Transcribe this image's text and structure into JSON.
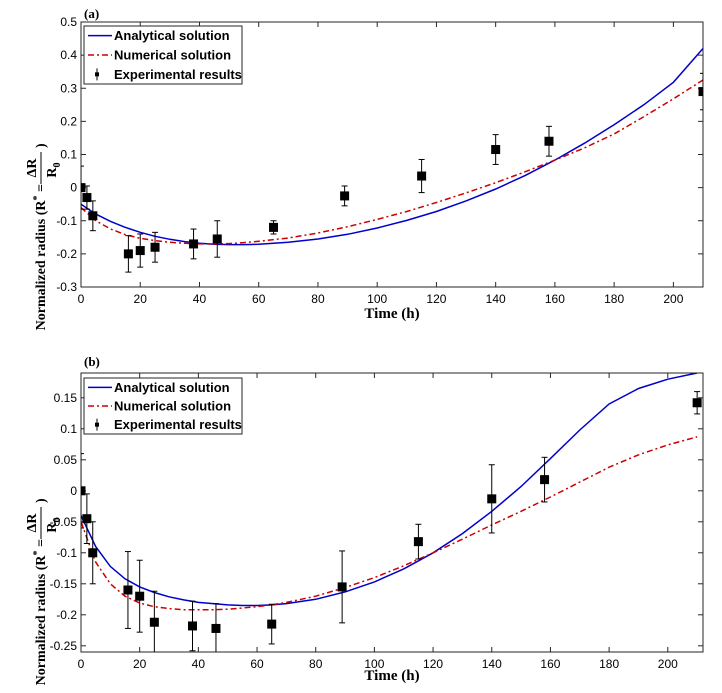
{
  "chart_data": [
    {
      "type": "line",
      "panel_label": "(a)",
      "xlabel": "Time (h)",
      "ylabel": "Normalized radius (R* = ΔR/R0)",
      "ylabel_main": "Normalized radius (R",
      "ylabel_star": "*",
      "ylabel_eq": " = ",
      "ylabel_close": ")",
      "ylabel_num": "ΔR",
      "ylabel_den": "R",
      "ylabel_den_sub": "0",
      "xlim": [
        0,
        210
      ],
      "ylim": [
        -0.3,
        0.5
      ],
      "xticks": [
        0,
        20,
        40,
        60,
        80,
        100,
        120,
        140,
        160,
        180,
        200
      ],
      "yticks": [
        -0.3,
        -0.2,
        -0.1,
        0,
        0.1,
        0.2,
        0.3,
        0.4,
        0.5
      ],
      "ytick_labels": [
        "-0.3",
        "-0.2",
        "-0.1",
        "0",
        "0.1",
        "0.2",
        "0.3",
        "0.4",
        "0.5"
      ],
      "legend": [
        "Analytical solution",
        "Numerical solution",
        "Experimental results"
      ],
      "legend_position": "top-left",
      "series": [
        {
          "name": "Analytical solution",
          "color": "#0000cc",
          "style": "solid",
          "x": [
            0,
            5,
            10,
            15,
            20,
            25,
            30,
            35,
            40,
            45,
            50,
            55,
            60,
            70,
            80,
            90,
            100,
            110,
            120,
            130,
            140,
            150,
            160,
            170,
            180,
            190,
            200,
            210
          ],
          "y": [
            -0.05,
            -0.08,
            -0.102,
            -0.12,
            -0.135,
            -0.147,
            -0.156,
            -0.163,
            -0.168,
            -0.171,
            -0.172,
            -0.172,
            -0.171,
            -0.165,
            -0.155,
            -0.141,
            -0.122,
            -0.099,
            -0.072,
            -0.04,
            -0.004,
            0.037,
            0.083,
            0.134,
            0.19,
            0.25,
            0.318,
            0.42
          ]
        },
        {
          "name": "Numerical solution",
          "color": "#cc0000",
          "style": "dashdot",
          "x": [
            0,
            5,
            10,
            15,
            20,
            25,
            30,
            35,
            40,
            45,
            50,
            55,
            60,
            70,
            80,
            90,
            100,
            110,
            120,
            130,
            140,
            150,
            160,
            170,
            180,
            190,
            200,
            210
          ],
          "y": [
            -0.06,
            -0.1,
            -0.125,
            -0.142,
            -0.153,
            -0.16,
            -0.165,
            -0.168,
            -0.17,
            -0.17,
            -0.169,
            -0.166,
            -0.162,
            -0.152,
            -0.137,
            -0.118,
            -0.096,
            -0.072,
            -0.045,
            -0.016,
            0.015,
            0.048,
            0.083,
            0.12,
            0.162,
            0.214,
            0.268,
            0.325
          ]
        },
        {
          "name": "Experimental results",
          "color": "#000000",
          "style": "markers-errorbars",
          "x": [
            0,
            2,
            4,
            16,
            20,
            25,
            38,
            46,
            65,
            89,
            115,
            140,
            158,
            210
          ],
          "y": [
            0,
            -0.03,
            -0.085,
            -0.2,
            -0.19,
            -0.18,
            -0.17,
            -0.155,
            -0.12,
            -0.025,
            0.035,
            0.115,
            0.14,
            0.29
          ],
          "err": [
            0.065,
            0.035,
            0.045,
            0.055,
            0.05,
            0.045,
            0.045,
            0.055,
            0.02,
            0.03,
            0.05,
            0.045,
            0.045,
            0.055
          ]
        }
      ]
    },
    {
      "type": "line",
      "panel_label": "(b)",
      "xlabel": "Time (h)",
      "ylabel": "Normalized radius (R* = ΔR/R0)",
      "ylabel_main": "Normalized radius (R",
      "ylabel_star": "*",
      "ylabel_eq": " = ",
      "ylabel_close": ")",
      "ylabel_num": "ΔR",
      "ylabel_den": "R",
      "ylabel_den_sub": "0",
      "xlim": [
        0,
        212
      ],
      "ylim": [
        -0.26,
        0.19
      ],
      "xticks": [
        0,
        20,
        40,
        60,
        80,
        100,
        120,
        140,
        160,
        180,
        200
      ],
      "yticks": [
        -0.25,
        -0.2,
        -0.15,
        -0.1,
        -0.05,
        0,
        0.05,
        0.1,
        0.15
      ],
      "ytick_labels": [
        "-0.25",
        "-0.2",
        "-0.15",
        "-0.1",
        "-0.05",
        "0",
        "0.05",
        "0.1",
        "0.15"
      ],
      "legend": [
        "Analytical solution",
        "Numerical solution",
        "Experimental results"
      ],
      "legend_position": "top-left",
      "series": [
        {
          "name": "Analytical solution",
          "color": "#0000cc",
          "style": "solid",
          "x": [
            0,
            5,
            10,
            15,
            20,
            25,
            30,
            35,
            40,
            45,
            50,
            55,
            60,
            65,
            70,
            80,
            90,
            100,
            110,
            120,
            130,
            140,
            150,
            160,
            170,
            180,
            190,
            200,
            210
          ],
          "y": [
            -0.04,
            -0.09,
            -0.122,
            -0.142,
            -0.155,
            -0.164,
            -0.171,
            -0.176,
            -0.18,
            -0.182,
            -0.184,
            -0.185,
            -0.185,
            -0.184,
            -0.182,
            -0.175,
            -0.163,
            -0.147,
            -0.126,
            -0.1,
            -0.069,
            -0.033,
            0.007,
            0.052,
            0.098,
            0.14,
            0.165,
            0.18,
            0.19
          ]
        },
        {
          "name": "Numerical solution",
          "color": "#cc0000",
          "style": "dashdot",
          "x": [
            0,
            5,
            10,
            15,
            20,
            25,
            30,
            35,
            40,
            45,
            50,
            55,
            60,
            65,
            70,
            80,
            90,
            100,
            110,
            120,
            130,
            140,
            150,
            160,
            170,
            180,
            190,
            200,
            210
          ],
          "y": [
            -0.05,
            -0.115,
            -0.15,
            -0.17,
            -0.181,
            -0.187,
            -0.19,
            -0.192,
            -0.192,
            -0.192,
            -0.191,
            -0.189,
            -0.187,
            -0.184,
            -0.18,
            -0.17,
            -0.156,
            -0.14,
            -0.121,
            -0.1,
            -0.078,
            -0.055,
            -0.033,
            -0.01,
            0.014,
            0.038,
            0.058,
            0.074,
            0.087
          ]
        },
        {
          "name": "Experimental results",
          "color": "#000000",
          "style": "markers-errorbars",
          "x": [
            0,
            2,
            4,
            16,
            20,
            25,
            38,
            46,
            65,
            89,
            115,
            140,
            158,
            210
          ],
          "y": [
            0,
            -0.045,
            -0.1,
            -0.16,
            -0.17,
            -0.212,
            -0.218,
            -0.222,
            -0.215,
            -0.155,
            -0.082,
            -0.013,
            0.018,
            0.142
          ],
          "err": [
            0.06,
            0.04,
            0.05,
            0.062,
            0.058,
            0.05,
            0.04,
            0.04,
            0.032,
            0.058,
            0.028,
            0.055,
            0.036,
            0.018
          ]
        }
      ]
    }
  ]
}
